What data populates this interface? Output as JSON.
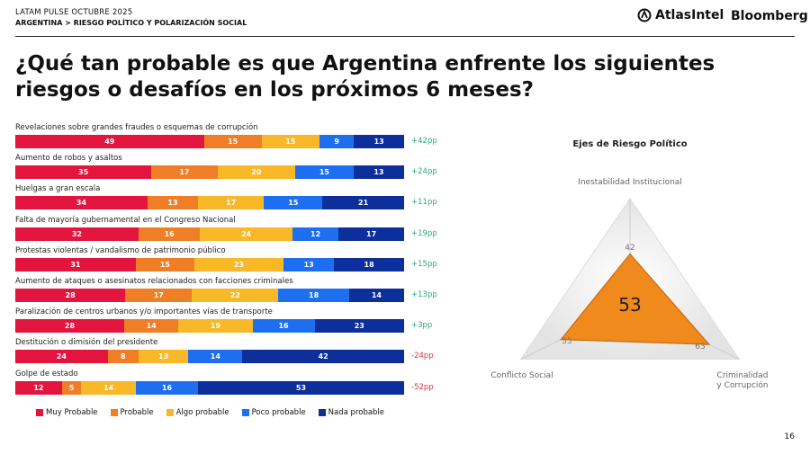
{
  "header": {
    "line1": "LATAM PULSE OCTUBRE 2025",
    "line2": "ARGENTINA > RIESGO POLÍTICO Y POLARIZACIÓN SOCIAL",
    "brand1": "AtlasIntel",
    "brand2": "Bloomberg"
  },
  "title": "¿Qué tan probable es que Argentina enfrente los siguientes riesgos o desafíos en los próximos 6 meses?",
  "page_number": "16",
  "colors": {
    "Muy Probable": "#e3153f",
    "Probable": "#f07e26",
    "Algo probable": "#f8b827",
    "Poco probable": "#1e6ff0",
    "Nada probable": "#0d2f9c",
    "positive": "#2aa87a",
    "negative": "#d9344a"
  },
  "chart_data": [
    {
      "type": "bar",
      "stacked": true,
      "orientation": "horizontal",
      "series_names": [
        "Muy Probable",
        "Probable",
        "Algo probable",
        "Poco probable",
        "Nada probable"
      ],
      "legend": "bottom",
      "rows": [
        {
          "label": "Revelaciones sobre grandes fraudes o esquemas de corrupción",
          "values": [
            49,
            15,
            15,
            9,
            13
          ],
          "delta": "+42pp"
        },
        {
          "label": "Aumento de robos y asaltos",
          "values": [
            35,
            17,
            20,
            15,
            13
          ],
          "delta": "+24pp"
        },
        {
          "label": "Huelgas a gran escala",
          "values": [
            34,
            13,
            17,
            15,
            21
          ],
          "delta": "+11pp"
        },
        {
          "label": "Falta de mayoría gubernamental en el Congreso Nacional",
          "values": [
            32,
            16,
            24,
            12,
            17
          ],
          "delta": "+19pp"
        },
        {
          "label": "Protestas violentas / vandalismo de patrimonio público",
          "values": [
            31,
            15,
            23,
            13,
            18
          ],
          "delta": "+15pp"
        },
        {
          "label": "Aumento de ataques o asesinatos relacionados con facciones criminales",
          "values": [
            28,
            17,
            22,
            18,
            14
          ],
          "delta": "+13pp"
        },
        {
          "label": "Paralización de centros urbanos y/o importantes vías de transporte",
          "values": [
            28,
            14,
            19,
            16,
            23
          ],
          "delta": "+3pp"
        },
        {
          "label": "Destitución o dimisión del presidente",
          "values": [
            24,
            8,
            13,
            14,
            42
          ],
          "delta": "-24pp"
        },
        {
          "label": "Golpe de estado",
          "values": [
            12,
            5,
            14,
            16,
            53
          ],
          "delta": "-52pp"
        }
      ]
    },
    {
      "type": "radar",
      "title": "Ejes de Riesgo Político",
      "center_value": "53",
      "axes": [
        {
          "label": "Inestabilidad Institucional",
          "value": 42
        },
        {
          "label": "Criminalidad y Corrupción",
          "value": 63
        },
        {
          "label": "Conflicto Social",
          "value": 55
        }
      ],
      "range": [
        0,
        100
      ]
    }
  ]
}
